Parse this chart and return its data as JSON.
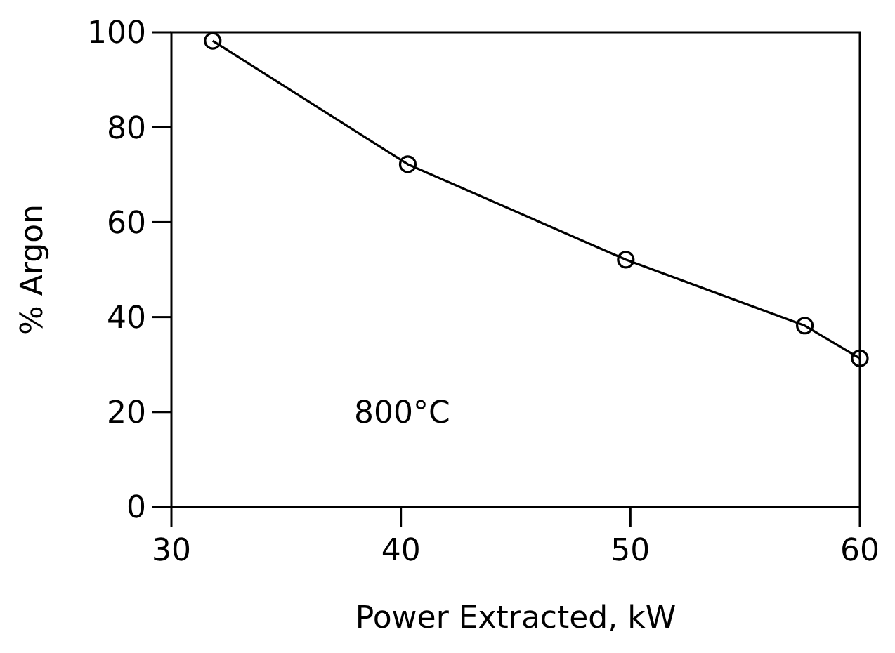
{
  "chart_data": {
    "type": "line",
    "xlabel": "Power Extracted, kW",
    "ylabel": "% Argon",
    "annotations": [
      "800°C"
    ],
    "x": [
      31.8,
      40.3,
      49.8,
      57.6,
      60
    ],
    "series": [
      {
        "color": "#000000",
        "values": [
          98.2,
          72.2,
          52.1,
          38.2,
          31.3
        ]
      }
    ],
    "xlim": [
      30,
      60
    ],
    "ylim": [
      0,
      100
    ],
    "xticks": [
      30,
      40,
      50,
      60
    ],
    "yticks": [
      0,
      20,
      40,
      60,
      80,
      100
    ],
    "marker": "circle",
    "grid": false
  }
}
